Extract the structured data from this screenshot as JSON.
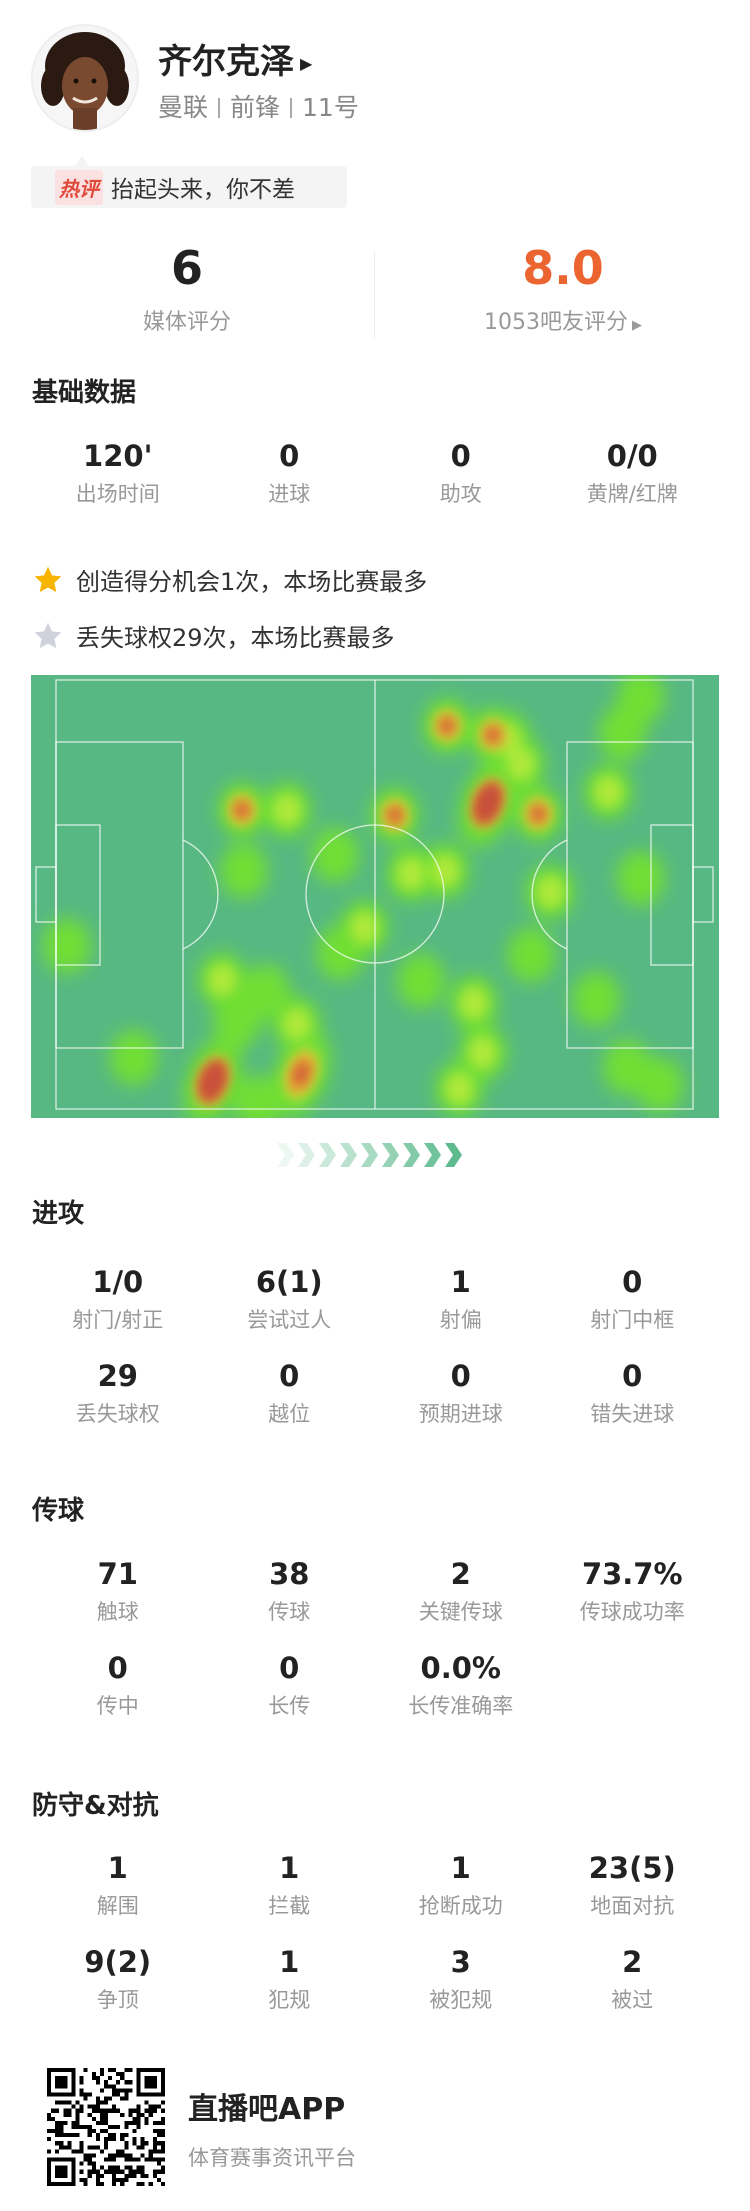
{
  "player": {
    "name": "齐尔克泽",
    "team": "曼联",
    "position": "前锋",
    "number": "11号"
  },
  "hot_comment": {
    "badge": "热评",
    "text": "抬起头来，你不差"
  },
  "ratings": {
    "media": {
      "value": "6",
      "label": "媒体评分"
    },
    "fans": {
      "value": "8.0",
      "label": "1053吧友评分"
    }
  },
  "colors": {
    "accent": "#ec6430",
    "pitch": "#58b883",
    "star_gold": "#f7b500",
    "star_gray": "#cfd2da"
  },
  "basic": {
    "title": "基础数据",
    "items": [
      {
        "value": "120'",
        "label": "出场时间"
      },
      {
        "value": "0",
        "label": "进球"
      },
      {
        "value": "0",
        "label": "助攻"
      },
      {
        "value": "0/0",
        "label": "黄牌/红牌"
      }
    ]
  },
  "highlights": [
    {
      "icon": "star-gold-icon",
      "text": "创造得分机会1次，本场比赛最多"
    },
    {
      "icon": "star-gray-icon",
      "text": "丢失球权29次，本场比赛最多"
    }
  ],
  "heatmap": {
    "direction": "attacking-right",
    "points": [
      [
        24.6,
        93.5,
        3
      ],
      [
        67.8,
        28.7,
        3
      ],
      [
        38.5,
        91.8,
        2.5
      ],
      [
        61.4,
        10.7,
        2
      ],
      [
        68.6,
        12.8,
        2
      ],
      [
        75.7,
        31.2,
        2
      ],
      [
        53.2,
        31.5,
        2
      ],
      [
        29.2,
        30.3,
        2
      ],
      [
        91.8,
        4.0,
        1
      ],
      [
        88.9,
        12.4,
        1
      ],
      [
        86.7,
        26.1,
        1.3
      ],
      [
        91.8,
        46.2,
        1
      ],
      [
        77.6,
        49.4,
        1.3
      ],
      [
        55.7,
        45.2,
        1.3
      ],
      [
        61.1,
        44.5,
        1.2
      ],
      [
        43.8,
        40.8,
        1
      ],
      [
        29.5,
        44.5,
        1
      ],
      [
        36.3,
        30.3,
        1.2
      ],
      [
        48.4,
        57.8,
        1.3
      ],
      [
        44.6,
        63.6,
        1
      ],
      [
        1.7,
        62.0,
        1
      ],
      [
        26.1,
        69.9,
        1.3
      ],
      [
        33.0,
        72.7,
        1
      ],
      [
        37.8,
        80.2,
        1.2
      ],
      [
        28.4,
        79.5,
        1
      ],
      [
        12.2,
        88.1,
        1
      ],
      [
        31.7,
        98.6,
        1
      ],
      [
        57.3,
        70.2,
        1
      ],
      [
        65.6,
        75.3,
        1.2
      ],
      [
        67.0,
        86.9,
        1.3
      ],
      [
        63.3,
        95.3,
        1.2
      ],
      [
        74.6,
        64.1,
        1
      ],
      [
        84.8,
        74.4,
        1
      ],
      [
        89.6,
        90.2,
        1
      ],
      [
        94.8,
        94.4,
        1
      ],
      [
        73.0,
        19.6,
        1.2
      ],
      [
        70.8,
        13.8,
        1.2
      ]
    ]
  },
  "attack": {
    "title": "进攻",
    "items": [
      {
        "value": "1/0",
        "label": "射门/射正"
      },
      {
        "value": "6(1)",
        "label": "尝试过人"
      },
      {
        "value": "1",
        "label": "射偏"
      },
      {
        "value": "0",
        "label": "射门中框"
      },
      {
        "value": "29",
        "label": "丢失球权"
      },
      {
        "value": "0",
        "label": "越位"
      },
      {
        "value": "0",
        "label": "预期进球"
      },
      {
        "value": "0",
        "label": "错失进球"
      }
    ]
  },
  "passing": {
    "title": "传球",
    "items": [
      {
        "value": "71",
        "label": "触球"
      },
      {
        "value": "38",
        "label": "传球"
      },
      {
        "value": "2",
        "label": "关键传球"
      },
      {
        "value": "73.7%",
        "label": "传球成功率"
      },
      {
        "value": "0",
        "label": "传中"
      },
      {
        "value": "0",
        "label": "长传"
      },
      {
        "value": "0.0%",
        "label": "长传准确率"
      }
    ]
  },
  "defense": {
    "title": "防守&对抗",
    "items": [
      {
        "value": "1",
        "label": "解围"
      },
      {
        "value": "1",
        "label": "拦截"
      },
      {
        "value": "1",
        "label": "抢断成功"
      },
      {
        "value": "23(5)",
        "label": "地面对抗"
      },
      {
        "value": "9(2)",
        "label": "争顶"
      },
      {
        "value": "1",
        "label": "犯规"
      },
      {
        "value": "3",
        "label": "被犯规"
      },
      {
        "value": "2",
        "label": "被过"
      }
    ]
  },
  "footer": {
    "app_name": "直播吧APP",
    "tagline": "体育赛事资讯平台"
  }
}
